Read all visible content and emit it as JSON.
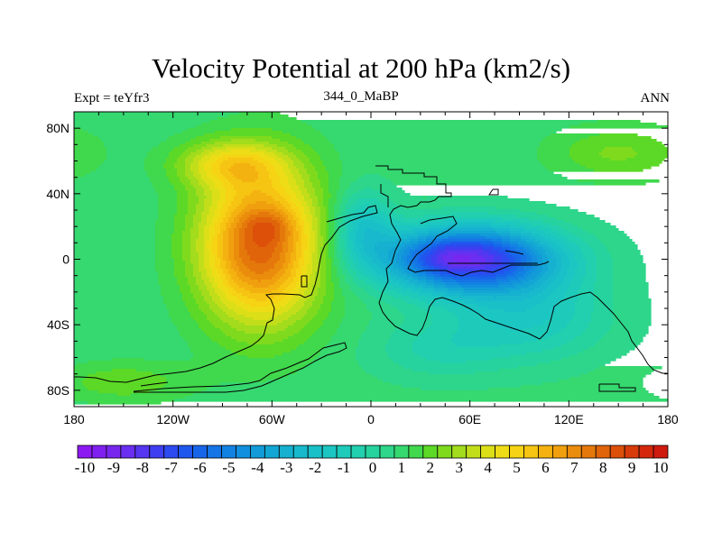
{
  "chart_data": {
    "type": "heatmap",
    "title": "Velocity Potential at 200 hPa (km2/s)",
    "left_label": "Expt = teYfr3",
    "center_label": "344_0_MaBP",
    "right_label": "ANN",
    "x_ticks": [
      {
        "lon": -180,
        "label": "180"
      },
      {
        "lon": -120,
        "label": "120W"
      },
      {
        "lon": -60,
        "label": "60W"
      },
      {
        "lon": 0,
        "label": "0"
      },
      {
        "lon": 60,
        "label": "60E"
      },
      {
        "lon": 120,
        "label": "120E"
      },
      {
        "lon": 180,
        "label": "180"
      }
    ],
    "y_ticks": [
      {
        "lat": 80,
        "label": "80N"
      },
      {
        "lat": 40,
        "label": "40N"
      },
      {
        "lat": 0,
        "label": "0"
      },
      {
        "lat": -40,
        "label": "40S"
      },
      {
        "lat": -80,
        "label": "80S"
      }
    ],
    "xlim": [
      -180,
      180
    ],
    "ylim": [
      -90,
      90
    ],
    "colorbar_levels": [
      -10,
      -9.5,
      -9,
      -8.5,
      -8,
      -7.5,
      -7,
      -6.5,
      -6,
      -5.5,
      -5,
      -4.5,
      -4,
      -3.5,
      -3,
      -2.5,
      -2,
      -1.5,
      -1,
      -0.5,
      0,
      0.5,
      1,
      1.5,
      2,
      2.5,
      3,
      3.5,
      4,
      4.5,
      5,
      5.5,
      6,
      6.5,
      7,
      7.5,
      8,
      8.5,
      9,
      9.5,
      10
    ],
    "colorbar_labels": [
      "-10",
      "-9",
      "-8",
      "-7",
      "-6",
      "-5",
      "-4",
      "-3",
      "-2",
      "-1",
      "0",
      "1",
      "2",
      "3",
      "4",
      "5",
      "6",
      "7",
      "8",
      "9",
      "10"
    ],
    "colors": [
      "#8c19f2",
      "#8020f0",
      "#7828ee",
      "#6a2ff0",
      "#5636f0",
      "#3f3ef0",
      "#2d49f0",
      "#1f57ee",
      "#1766ea",
      "#1574e6",
      "#1282e2",
      "#128fde",
      "#129bd8",
      "#13a6d4",
      "#16b0d0",
      "#18b9cc",
      "#1ac0c8",
      "#1cc6c2",
      "#1ecbba",
      "#22cfae",
      "#26d39e",
      "#2dd68a",
      "#36d870",
      "#40d84c",
      "#5cd926",
      "#7fda1e",
      "#a2dc1c",
      "#c2de1a",
      "#dcdf18",
      "#eedd16",
      "#f6d314",
      "#f6c412",
      "#f4b210",
      "#f0a00e",
      "#ea8c0c",
      "#e5780b",
      "#e0640a",
      "#dc500a",
      "#d83c0a",
      "#d4280c",
      "#cf1a10"
    ],
    "field_features": [
      {
        "name": "western-positive-center",
        "lon": -62,
        "lat": 20,
        "value": 8.9
      },
      {
        "name": "eastern-negative-center",
        "lon": 45,
        "lat": 2,
        "value": -9.6
      }
    ]
  }
}
